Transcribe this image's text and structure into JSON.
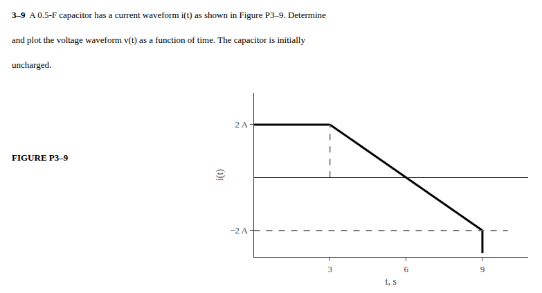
{
  "chart_data": {
    "type": "line",
    "annotations": [
      "3–9",
      "A 0.5-F capacitor has a current waveform i(t) as shown in Figure P3–9. Determine",
      "and plot the voltage waveform v(t) as a function of time. The capacitor is initially",
      "uncharged.",
      "FIGURE P3–9"
    ],
    "xlabel": "t, s",
    "ylabel": "i(t)",
    "xlim": [
      0,
      10.8
    ],
    "ylim": [
      -3.0,
      3.2
    ],
    "xticks": [
      3,
      6,
      9
    ],
    "yticks": [
      {
        "value": 2,
        "label": "2 A"
      },
      {
        "value": -2,
        "label": "−2 A"
      }
    ],
    "grid": false,
    "series": [
      {
        "x": [
          0,
          3
        ],
        "values": [
          2,
          2
        ],
        "color": "#000000",
        "line_style": "solid"
      },
      {
        "x": [
          3,
          9
        ],
        "values": [
          2,
          -2
        ],
        "color": "#000000",
        "line_style": "solid"
      },
      {
        "x": [
          9,
          9
        ],
        "values": [
          -2,
          -2.85
        ],
        "color": "#000000",
        "line_style": "solid"
      },
      {
        "x": [
          3,
          3
        ],
        "values": [
          0.0,
          2.0
        ],
        "color": "#666666",
        "line_style": "dashed"
      },
      {
        "x": [
          0,
          10.0
        ],
        "values": [
          -2,
          -2
        ],
        "color": "#666666",
        "line_style": "dashed"
      }
    ]
  }
}
